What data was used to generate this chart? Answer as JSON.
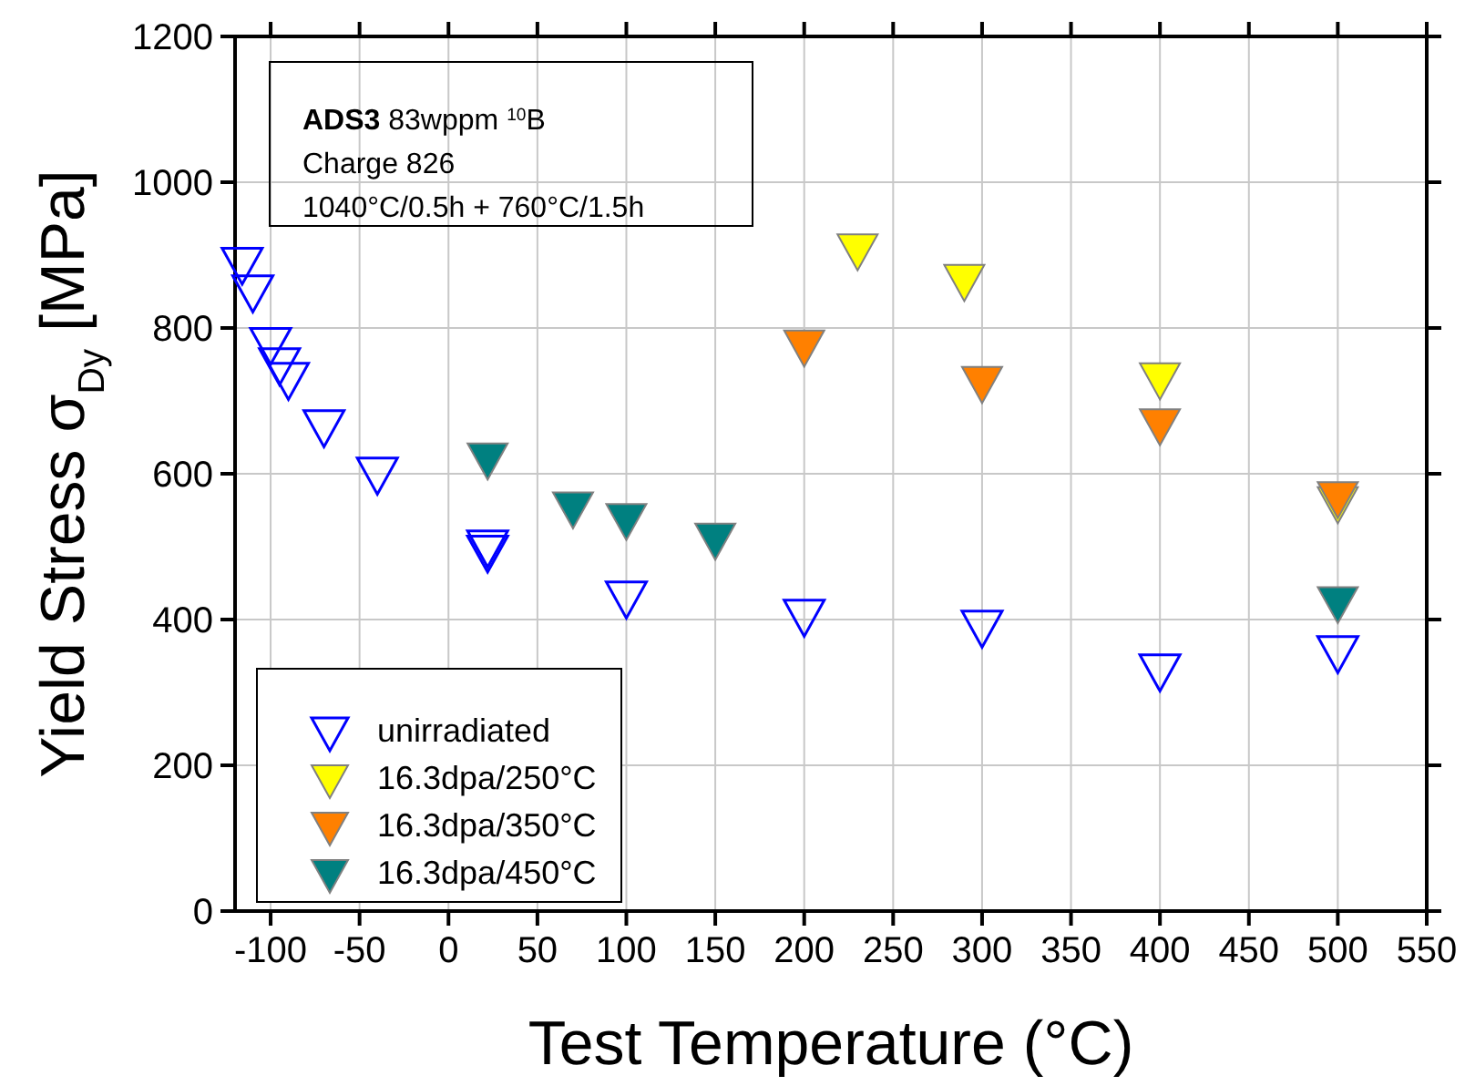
{
  "chart_data": {
    "type": "scatter",
    "xlabel": "Test Temperature (°C)",
    "ylabel": "Yield Stress σ$_{Dy}$ [MPa]",
    "annotations": [
      "ADS3 83wppm $^{10}$B",
      "Charge 826",
      "1040°C/0.5h + 760°C/1.5h"
    ],
    "xlim": [
      -120,
      550
    ],
    "xticks": [
      -100,
      -50,
      0,
      50,
      100,
      150,
      200,
      250,
      300,
      350,
      400,
      450,
      500,
      550
    ],
    "ylim": [
      0,
      1200
    ],
    "yticks": [
      0,
      200,
      400,
      600,
      800,
      1000,
      1200
    ],
    "grid": true,
    "legend": "bottom left",
    "marker": "triangle",
    "series": [
      {
        "name": "unirradiated",
        "color": "#0000ff",
        "x": [
          -116,
          -110,
          -100,
          -95,
          -90,
          -70,
          -40,
          22,
          22,
          100,
          200,
          300,
          400,
          500
        ],
        "values": [
          893,
          855,
          783,
          755,
          735,
          670,
          605,
          505,
          498,
          435,
          410,
          395,
          335,
          360
        ]
      },
      {
        "name": "16.3dpa/250°C",
        "color": "#ffff00",
        "x": [
          230,
          290,
          400,
          500
        ],
        "values": [
          912,
          870,
          735,
          565
        ]
      },
      {
        "name": "16.3dpa/350°C",
        "color": "#ff8000",
        "x": [
          200,
          300,
          400,
          500
        ],
        "values": [
          780,
          730,
          672,
          572
        ]
      },
      {
        "name": "16.3dpa/450°C",
        "color": "#008080",
        "x": [
          22,
          70,
          100,
          150,
          500
        ],
        "values": [
          625,
          558,
          542,
          515,
          428
        ]
      }
    ]
  }
}
